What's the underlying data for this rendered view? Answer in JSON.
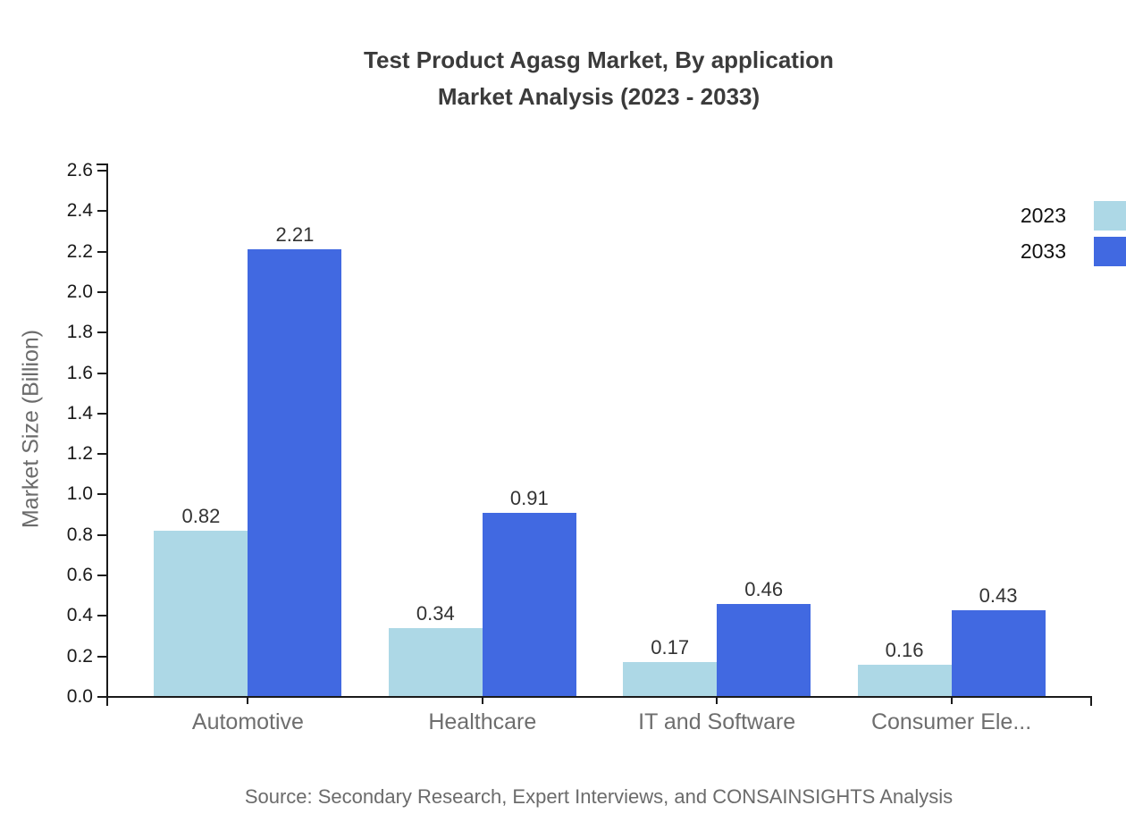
{
  "chart": {
    "title_line1": "Test Product Agasg Market, By application",
    "title_line2": "Market Analysis (2023 - 2033)",
    "source": "Source: Secondary Research, Expert Interviews, and CONSAINSIGHTS Analysis"
  },
  "chart_data": {
    "type": "bar",
    "title": "Test Product Agasg Market, By application Market Analysis (2023 - 2033)",
    "categories": [
      "Automotive",
      "Healthcare",
      "IT and Software",
      "Consumer Ele..."
    ],
    "series": [
      {
        "name": "2023",
        "color": "#ADD8E6",
        "values": [
          0.82,
          0.34,
          0.17,
          0.16
        ]
      },
      {
        "name": "2033",
        "color": "#4169E1",
        "values": [
          2.21,
          0.91,
          0.46,
          0.43
        ]
      }
    ],
    "value_labels": [
      "0.82",
      "2.21",
      "0.34",
      "0.91",
      "0.17",
      "0.46",
      "0.16",
      "0.43"
    ],
    "xlabel": "",
    "ylabel": "Market Size (Billion)",
    "ylim": [
      0,
      2.6
    ],
    "ytick_step": 0.2,
    "yticks": [
      "0.0",
      "0.2",
      "0.4",
      "0.6",
      "0.8",
      "1.0",
      "1.2",
      "1.4",
      "1.6",
      "1.8",
      "2.0",
      "2.2",
      "2.4",
      "2.6"
    ],
    "grid": false,
    "legend_position": "top-right",
    "bar_value_labels_shown": true,
    "axis_color": "#1a1a1a",
    "label_color": "#6e6e6e"
  }
}
